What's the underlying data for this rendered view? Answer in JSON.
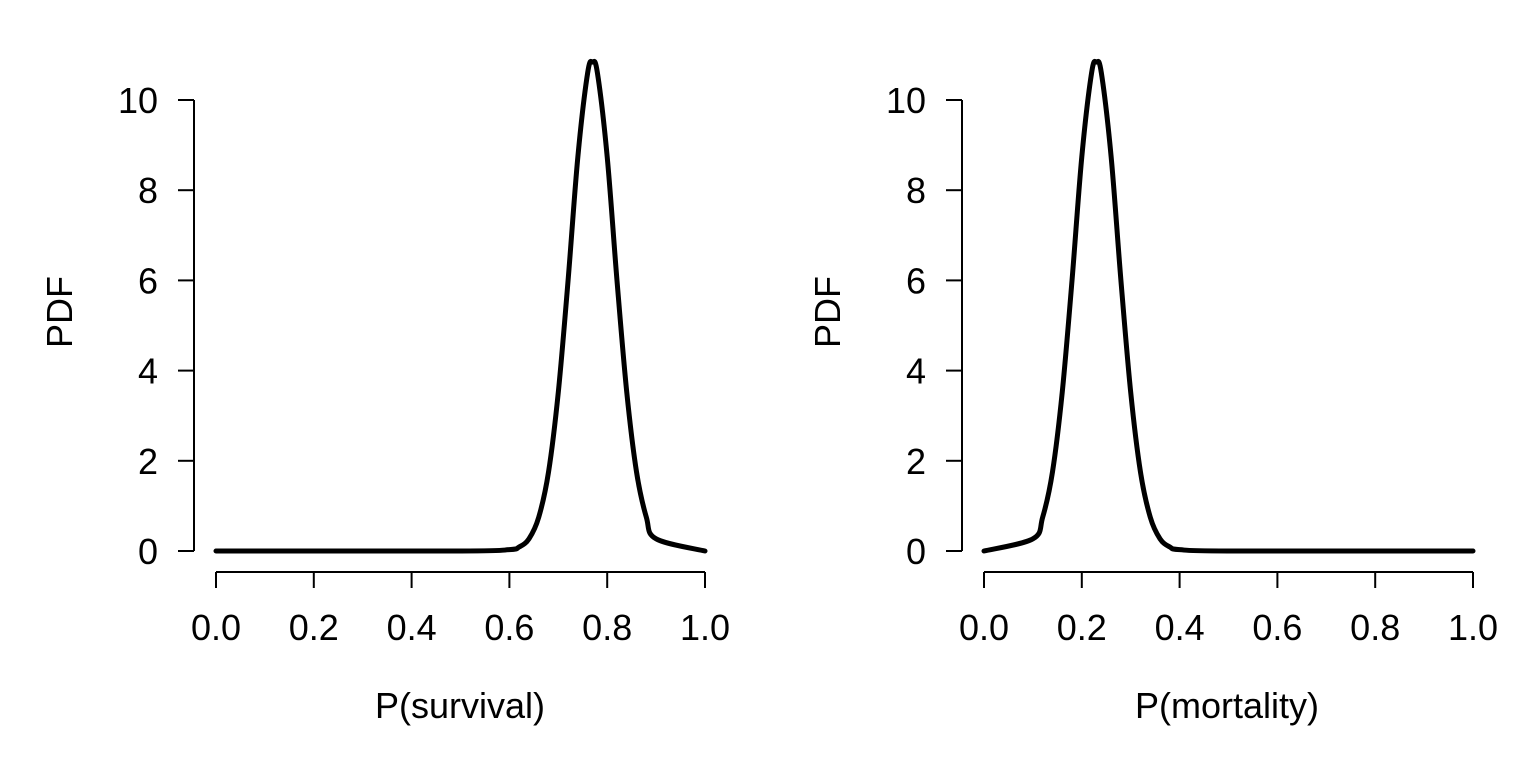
{
  "chart_data": [
    {
      "type": "line",
      "title": "",
      "xlabel": "P(survival)",
      "ylabel": "PDF",
      "xlim": [
        0,
        1
      ],
      "ylim": [
        0,
        10
      ],
      "xticks": [
        "0.0",
        "0.2",
        "0.4",
        "0.6",
        "0.8",
        "1.0"
      ],
      "yticks": [
        "0",
        "2",
        "4",
        "6",
        "8",
        "10"
      ],
      "grid": false,
      "color": "#000000",
      "series": [
        {
          "x": [
            0.0,
            0.5,
            0.6,
            0.62,
            0.64,
            0.66,
            0.68,
            0.7,
            0.72,
            0.74,
            0.76,
            0.77,
            0.78,
            0.8,
            0.82,
            0.84,
            0.86,
            0.88,
            0.9,
            1.0
          ],
          "y": [
            0.0,
            0.0,
            0.03,
            0.09,
            0.27,
            0.75,
            1.75,
            3.52,
            6.0,
            8.74,
            10.6,
            10.84,
            10.6,
            8.74,
            6.0,
            3.52,
            1.75,
            0.75,
            0.27,
            0.0
          ]
        }
      ]
    },
    {
      "type": "line",
      "title": "",
      "xlabel": "P(mortality)",
      "ylabel": "PDF",
      "xlim": [
        0,
        1
      ],
      "ylim": [
        0,
        10
      ],
      "xticks": [
        "0.0",
        "0.2",
        "0.4",
        "0.6",
        "0.8",
        "1.0"
      ],
      "yticks": [
        "0",
        "2",
        "4",
        "6",
        "8",
        "10"
      ],
      "grid": false,
      "color": "#000000",
      "series": [
        {
          "x": [
            0.0,
            0.1,
            0.12,
            0.14,
            0.16,
            0.18,
            0.2,
            0.22,
            0.23,
            0.24,
            0.26,
            0.28,
            0.3,
            0.32,
            0.34,
            0.36,
            0.38,
            0.4,
            0.5,
            1.0
          ],
          "y": [
            0.0,
            0.27,
            0.75,
            1.75,
            3.52,
            6.0,
            8.74,
            10.6,
            10.84,
            10.6,
            8.74,
            6.0,
            3.52,
            1.75,
            0.75,
            0.27,
            0.09,
            0.03,
            0.0,
            0.0
          ]
        }
      ]
    }
  ]
}
